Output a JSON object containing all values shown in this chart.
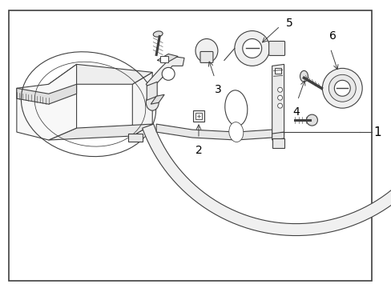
{
  "bg_color": "#ffffff",
  "line_color": "#404040",
  "label_color": "#000000",
  "fig_width": 4.89,
  "fig_height": 3.6,
  "dpi": 100,
  "label_fontsize": 10
}
